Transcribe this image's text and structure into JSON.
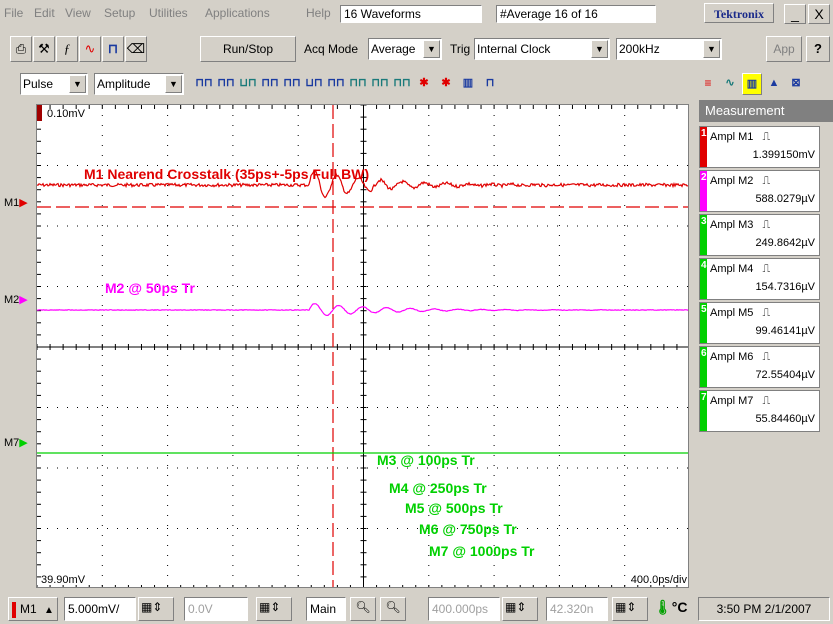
{
  "menu": {
    "items": [
      "File",
      "Edit",
      "View",
      "Setup",
      "Utilities",
      "Applications",
      "Help"
    ],
    "waveforms_label": "16 Waveforms",
    "average_status": "#Average 16 of 16",
    "brand": "Tektronix",
    "minimize": "_",
    "close": "X"
  },
  "toolbar1": {
    "run_stop": "Run/Stop",
    "acq_mode_label": "Acq Mode",
    "acq_mode_value": "Average",
    "trig_label": "Trig",
    "trig_value": "Internal Clock",
    "rate_value": "200kHz",
    "app_label": "App",
    "help_label": "?"
  },
  "toolbar2": {
    "mode_value": "Pulse",
    "meas_value": "Amplitude"
  },
  "scope": {
    "top_left_label": "0.10mV",
    "bottom_left_label": "39.90mV",
    "bottom_right_label": "400.0ps/div",
    "ch_m1": "M1",
    "ch_m2": "M2",
    "ch_m7": "M7",
    "ann_m1": "M1 Nearend Crosstalk  (35ps+-5ps Full BW)",
    "ann_m2": "M2 @ 50ps Tr",
    "ann_m3": "M3 @ 100ps Tr",
    "ann_m4": "M4 @ 250ps Tr",
    "ann_m5": "M5 @ 500ps Tr",
    "ann_m6": "M6 @ 750ps Tr",
    "ann_m7": "M7 @ 1000ps Tr",
    "colors": {
      "red": "#e00000",
      "magenta": "#ff00ff",
      "green": "#00d000",
      "grid": "#000000"
    }
  },
  "measurement": {
    "title": "Measurement",
    "rows": [
      {
        "num": "1",
        "name": "Ampl  M1",
        "value": "1.399150mV",
        "color": "#e00000"
      },
      {
        "num": "2",
        "name": "Ampl  M2",
        "value": "588.0279µV",
        "color": "#ff00ff"
      },
      {
        "num": "3",
        "name": "Ampl  M3",
        "value": "249.8642µV",
        "color": "#00d000"
      },
      {
        "num": "4",
        "name": "Ampl  M4",
        "value": "154.7316µV",
        "color": "#00d000"
      },
      {
        "num": "5",
        "name": "Ampl  M5",
        "value": "99.46141µV",
        "color": "#00d000"
      },
      {
        "num": "6",
        "name": "Ampl  M6",
        "value": "72.55404µV",
        "color": "#00d000"
      },
      {
        "num": "7",
        "name": "Ampl  M7",
        "value": "55.84460µV",
        "color": "#00d000"
      }
    ]
  },
  "bottom": {
    "channel": "M1",
    "vscale": "5.000mV/",
    "offset": "0.0V",
    "main_label": "Main",
    "horiz_pos": "400.000ps",
    "horiz_ref": "42.320n",
    "temp_unit": "°C",
    "clock": "3:50 PM 2/1/2007"
  }
}
